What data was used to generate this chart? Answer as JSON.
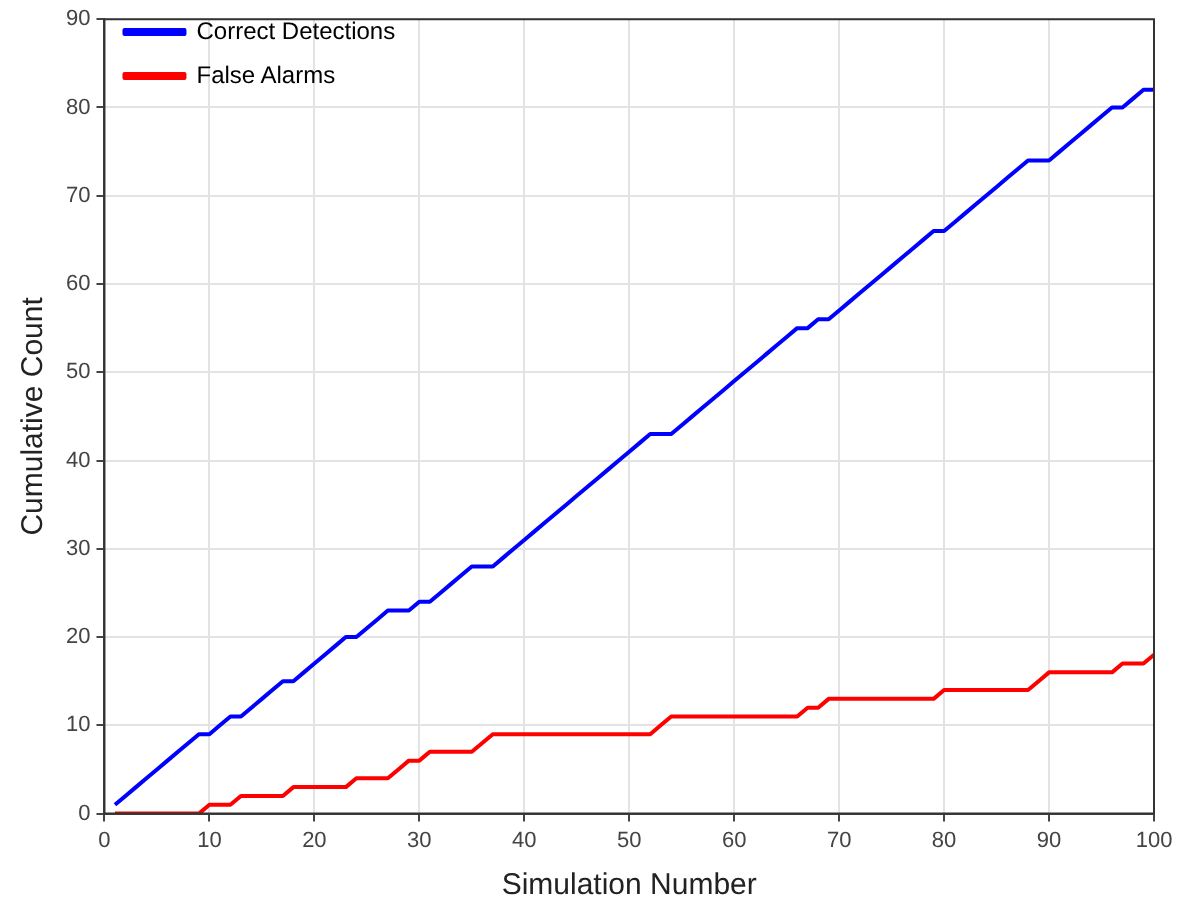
{
  "chart_data": {
    "type": "line",
    "xlabel": "Simulation Number",
    "ylabel": "Cumulative Count",
    "x": [
      1,
      2,
      3,
      4,
      5,
      6,
      7,
      8,
      9,
      10,
      11,
      12,
      13,
      14,
      15,
      16,
      17,
      18,
      19,
      20,
      21,
      22,
      23,
      24,
      25,
      26,
      27,
      28,
      29,
      30,
      31,
      32,
      33,
      34,
      35,
      36,
      37,
      38,
      39,
      40,
      41,
      42,
      43,
      44,
      45,
      46,
      47,
      48,
      49,
      50,
      51,
      52,
      53,
      54,
      55,
      56,
      57,
      58,
      59,
      60,
      61,
      62,
      63,
      64,
      65,
      66,
      67,
      68,
      69,
      70,
      71,
      72,
      73,
      74,
      75,
      76,
      77,
      78,
      79,
      80,
      81,
      82,
      83,
      84,
      85,
      86,
      87,
      88,
      89,
      90,
      91,
      92,
      93,
      94,
      95,
      96,
      97,
      98,
      99,
      100
    ],
    "series": [
      {
        "name": "Correct Detections",
        "color": "#0000ff",
        "values": [
          1,
          2,
          3,
          4,
          5,
          6,
          7,
          8,
          9,
          9,
          10,
          11,
          11,
          12,
          13,
          14,
          15,
          15,
          16,
          17,
          18,
          19,
          20,
          20,
          21,
          22,
          23,
          23,
          23,
          24,
          24,
          25,
          26,
          27,
          28,
          28,
          28,
          29,
          30,
          31,
          32,
          33,
          34,
          35,
          36,
          37,
          38,
          39,
          40,
          41,
          42,
          43,
          43,
          43,
          44,
          45,
          46,
          47,
          48,
          49,
          50,
          51,
          52,
          53,
          54,
          55,
          55,
          56,
          56,
          57,
          58,
          59,
          60,
          61,
          62,
          63,
          64,
          65,
          66,
          66,
          67,
          68,
          69,
          70,
          71,
          72,
          73,
          74,
          74,
          74,
          75,
          76,
          77,
          78,
          79,
          80,
          80,
          81,
          82,
          82
        ]
      },
      {
        "name": "False Alarms",
        "color": "#ff0000",
        "values": [
          0,
          0,
          0,
          0,
          0,
          0,
          0,
          0,
          0,
          1,
          1,
          1,
          2,
          2,
          2,
          2,
          2,
          3,
          3,
          3,
          3,
          3,
          3,
          4,
          4,
          4,
          4,
          5,
          6,
          6,
          7,
          7,
          7,
          7,
          7,
          8,
          9,
          9,
          9,
          9,
          9,
          9,
          9,
          9,
          9,
          9,
          9,
          9,
          9,
          9,
          9,
          9,
          10,
          11,
          11,
          11,
          11,
          11,
          11,
          11,
          11,
          11,
          11,
          11,
          11,
          11,
          12,
          12,
          13,
          13,
          13,
          13,
          13,
          13,
          13,
          13,
          13,
          13,
          13,
          14,
          14,
          14,
          14,
          14,
          14,
          14,
          14,
          14,
          15,
          16,
          16,
          16,
          16,
          16,
          16,
          16,
          17,
          17,
          17,
          18
        ]
      }
    ],
    "xlim": [
      0,
      100
    ],
    "xticks": [
      0,
      10,
      20,
      30,
      40,
      50,
      60,
      70,
      80,
      90,
      100
    ],
    "ylim": [
      0,
      90
    ],
    "yticks": [
      0,
      10,
      20,
      30,
      40,
      50,
      60,
      70,
      80,
      90
    ],
    "grid": true,
    "legend": "top left",
    "marker": "none",
    "line_style": "solid"
  }
}
